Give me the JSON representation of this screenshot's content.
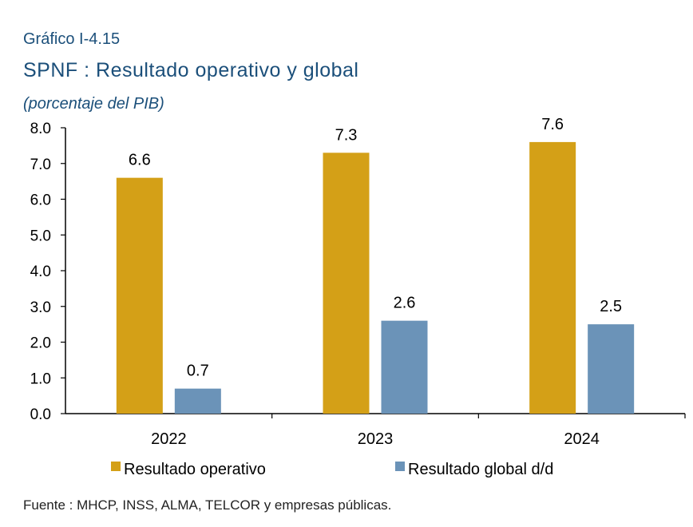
{
  "header": {
    "kicker": "Gráfico I-4.15",
    "title": "SPNF : Resultado operativo y global",
    "subtitle": "(porcentaje del PIB)"
  },
  "footer": {
    "source": "Fuente : MHCP, INSS, ALMA, TELCOR  y empresas públicas."
  },
  "chart_data": {
    "type": "bar",
    "categories": [
      "2022",
      "2023",
      "2024"
    ],
    "series": [
      {
        "name": "Resultado operativo",
        "values": [
          6.6,
          7.3,
          7.6
        ],
        "color": "#d4a017"
      },
      {
        "name": "Resultado global d/d",
        "values": [
          0.7,
          2.6,
          2.5
        ],
        "color": "#6b93b8"
      }
    ],
    "data_labels": [
      [
        "6.6",
        "7.3",
        "7.6"
      ],
      [
        "0.7",
        "2.6",
        "2.5"
      ]
    ],
    "ylim": [
      0,
      8
    ],
    "yticks": [
      "0.0",
      "1.0",
      "2.0",
      "3.0",
      "4.0",
      "5.0",
      "6.0",
      "7.0",
      "8.0"
    ],
    "grid": false,
    "legend_position": "bottom"
  }
}
